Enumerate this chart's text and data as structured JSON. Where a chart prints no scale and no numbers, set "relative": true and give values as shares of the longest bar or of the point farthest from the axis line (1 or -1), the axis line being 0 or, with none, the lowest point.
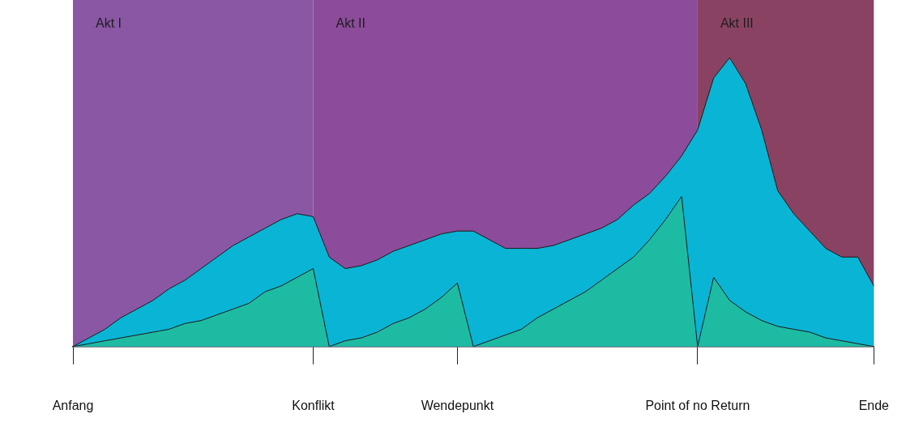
{
  "chart_data": {
    "type": "area",
    "relative": true,
    "marker": "none",
    "legend": false,
    "grid": false,
    "tick_labels": "x",
    "categories": [
      "Anfang",
      null,
      null,
      null,
      null,
      null,
      null,
      null,
      null,
      null,
      null,
      null,
      null,
      null,
      null,
      "Konflikt",
      null,
      null,
      null,
      null,
      null,
      null,
      null,
      null,
      "Wendepunkt",
      null,
      null,
      null,
      null,
      null,
      null,
      null,
      null,
      null,
      null,
      null,
      null,
      null,
      null,
      "Point of no Return",
      null,
      null,
      null,
      null,
      null,
      null,
      null,
      null,
      null,
      null,
      "Ende"
    ],
    "bands": [
      {
        "axis": "x",
        "from": "Anfang",
        "to": "Konflikt",
        "label": "Akt I",
        "color": "#8a57a5"
      },
      {
        "axis": "x",
        "from": "Konflikt",
        "to": "Point of no Return",
        "label": "Akt II",
        "color": "#8c4b9b"
      },
      {
        "axis": "x",
        "from": "Point of no Return",
        "to": "Ende",
        "label": "Akt III",
        "color": "#8a4262"
      }
    ],
    "series": [
      {
        "color": "#0ab4d4",
        "values": [
          0,
          0.03,
          0.06,
          0.1,
          0.13,
          0.16,
          0.2,
          0.23,
          0.27,
          0.31,
          0.35,
          0.38,
          0.41,
          0.44,
          0.46,
          0.45,
          0.31,
          0.27,
          0.28,
          0.3,
          0.33,
          0.35,
          0.37,
          0.39,
          0.4,
          0.4,
          0.37,
          0.34,
          0.34,
          0.34,
          0.35,
          0.37,
          0.39,
          0.41,
          0.44,
          0.49,
          0.53,
          0.59,
          0.66,
          0.75,
          0.93,
          1,
          0.91,
          0.75,
          0.54,
          0.46,
          0.4,
          0.34,
          0.31,
          0.31,
          0.21
        ]
      },
      {
        "color": "#1ebba3",
        "values": [
          0,
          0.01,
          0.02,
          0.03,
          0.04,
          0.05,
          0.06,
          0.08,
          0.09,
          0.11,
          0.13,
          0.15,
          0.19,
          0.21,
          0.24,
          0.27,
          0,
          0.02,
          0.03,
          0.05,
          0.08,
          0.1,
          0.13,
          0.17,
          0.22,
          0,
          0.02,
          0.04,
          0.06,
          0.1,
          0.13,
          0.16,
          0.19,
          0.23,
          0.27,
          0.31,
          0.37,
          0.44,
          0.52,
          0,
          0.24,
          0.16,
          0.12,
          0.09,
          0.07,
          0.06,
          0.05,
          0.03,
          0.02,
          0.01,
          0
        ]
      }
    ]
  }
}
